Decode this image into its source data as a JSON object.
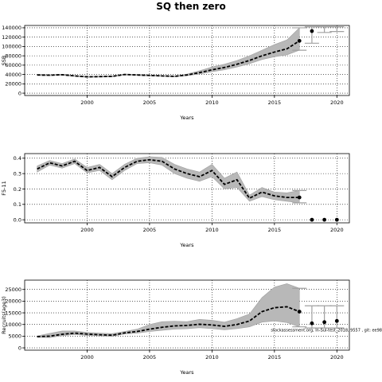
{
  "figure": {
    "title": "SQ then zero"
  },
  "chart_data": [
    {
      "type": "line",
      "xlabel": "Years",
      "ylabel": "SSB",
      "xlim": [
        1995,
        2021
      ],
      "ylim": [
        -5000,
        145000
      ],
      "xticks": [
        2000,
        2005,
        2010,
        2015,
        2020
      ],
      "yticks": [
        0,
        20000,
        40000,
        60000,
        80000,
        100000,
        120000,
        140000
      ],
      "ytick_labels": [
        "0",
        "20000",
        "40000",
        "60000",
        "80000",
        "100000",
        "120000",
        "140000"
      ],
      "grid": true,
      "x": [
        1996,
        1997,
        1998,
        1999,
        2000,
        2001,
        2002,
        2003,
        2004,
        2005,
        2006,
        2007,
        2008,
        2009,
        2010,
        2011,
        2012,
        2013,
        2014,
        2015,
        2016,
        2017
      ],
      "values": [
        39000,
        38500,
        39500,
        37000,
        35000,
        35500,
        36000,
        40000,
        39000,
        38000,
        37000,
        36000,
        39000,
        44000,
        50000,
        55000,
        62000,
        70000,
        80000,
        88000,
        95000,
        112000
      ],
      "lower": [
        38000,
        37500,
        38500,
        36000,
        34000,
        34500,
        35000,
        39000,
        38000,
        37000,
        36000,
        35000,
        37500,
        41000,
        46000,
        50000,
        56000,
        63000,
        72000,
        78000,
        82000,
        92000
      ],
      "upper": [
        40000,
        39500,
        40500,
        38000,
        36000,
        36500,
        37000,
        41000,
        40000,
        39000,
        38000,
        37000,
        41000,
        48000,
        56000,
        62000,
        70000,
        80000,
        92000,
        104000,
        114000,
        140000
      ],
      "projection_points": [
        {
          "x": 2018,
          "y": 133000
        }
      ],
      "projection_bars": [
        {
          "x": 2018,
          "low": 107000,
          "high": 142000
        },
        {
          "x": 2019,
          "low": 130000,
          "high": 142000
        },
        {
          "x": 2020,
          "low": 132000,
          "high": 142000
        }
      ]
    },
    {
      "type": "line",
      "xlabel": "Years",
      "ylabel": "F5-11",
      "xlim": [
        1995,
        2021
      ],
      "ylim": [
        -0.02,
        0.43
      ],
      "xticks": [
        2000,
        2005,
        2010,
        2015,
        2020
      ],
      "yticks": [
        0,
        0.1,
        0.2,
        0.3,
        0.4
      ],
      "ytick_labels": [
        "0.0",
        "0.1",
        "0.2",
        "0.3",
        "0.4"
      ],
      "grid": true,
      "x": [
        1996,
        1997,
        1998,
        1999,
        2000,
        2001,
        2002,
        2003,
        2004,
        2005,
        2006,
        2007,
        2008,
        2009,
        2010,
        2011,
        2012,
        2013,
        2014,
        2015,
        2016,
        2017
      ],
      "values": [
        0.33,
        0.37,
        0.35,
        0.38,
        0.32,
        0.34,
        0.28,
        0.34,
        0.38,
        0.39,
        0.38,
        0.33,
        0.3,
        0.28,
        0.32,
        0.23,
        0.26,
        0.14,
        0.18,
        0.155,
        0.145,
        0.145
      ],
      "lower": [
        0.31,
        0.355,
        0.335,
        0.365,
        0.305,
        0.32,
        0.26,
        0.32,
        0.365,
        0.37,
        0.355,
        0.3,
        0.27,
        0.25,
        0.28,
        0.2,
        0.21,
        0.12,
        0.15,
        0.13,
        0.12,
        0.11
      ],
      "upper": [
        0.35,
        0.385,
        0.365,
        0.395,
        0.34,
        0.36,
        0.3,
        0.36,
        0.4,
        0.41,
        0.405,
        0.36,
        0.33,
        0.31,
        0.36,
        0.27,
        0.31,
        0.16,
        0.21,
        0.18,
        0.175,
        0.19
      ],
      "projection_points": [
        {
          "x": 2018,
          "y": 0
        },
        {
          "x": 2019,
          "y": 0
        },
        {
          "x": 2020,
          "y": 0
        }
      ],
      "projection_bars": []
    },
    {
      "type": "line",
      "xlabel": "Years",
      "ylabel": "Recruits(age3)",
      "xlim": [
        1995,
        2021
      ],
      "ylim": [
        -1000,
        29000
      ],
      "xticks": [
        2000,
        2005,
        2010,
        2015,
        2020
      ],
      "yticks": [
        0,
        5000,
        10000,
        15000,
        20000,
        25000
      ],
      "ytick_labels": [
        "0",
        "5000",
        "10000",
        "15000",
        "20000",
        "25000"
      ],
      "grid": true,
      "x": [
        1996,
        1997,
        1998,
        1999,
        2000,
        2001,
        2002,
        2003,
        2004,
        2005,
        2006,
        2007,
        2008,
        2009,
        2010,
        2011,
        2012,
        2013,
        2014,
        2015,
        2016,
        2017
      ],
      "values": [
        4800,
        5000,
        5800,
        6300,
        5900,
        5600,
        5400,
        6400,
        7000,
        8000,
        8800,
        9400,
        9600,
        10100,
        9800,
        9200,
        10000,
        11500,
        15500,
        17200,
        17600,
        15500
      ],
      "lower": [
        4500,
        4400,
        5200,
        5700,
        5300,
        5100,
        4900,
        5900,
        6300,
        7000,
        7500,
        8000,
        8200,
        8600,
        8200,
        7700,
        8200,
        9000,
        11000,
        11500,
        10800,
        9000
      ],
      "upper": [
        5100,
        6200,
        7200,
        7200,
        6600,
        6300,
        6100,
        7000,
        8000,
        10000,
        11200,
        11400,
        11200,
        12200,
        11800,
        11000,
        12500,
        14500,
        21500,
        26000,
        27500,
        25500
      ],
      "projection_points": [
        {
          "x": 2018,
          "y": 10500
        },
        {
          "x": 2019,
          "y": 11000
        },
        {
          "x": 2020,
          "y": 11500
        }
      ],
      "projection_bars": [
        {
          "x": 2018,
          "low": 8500,
          "high": 18000
        },
        {
          "x": 2019,
          "low": 8500,
          "high": 18000
        },
        {
          "x": 2020,
          "low": 8500,
          "high": 18000
        }
      ],
      "annotation": "stockassessment.org, In-Sul-test_2018, 9557 , git: ee98"
    }
  ]
}
